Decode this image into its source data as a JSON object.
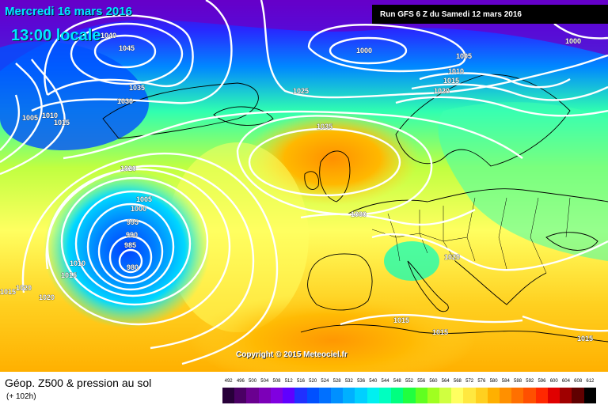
{
  "header": {
    "date": "Mercredi 16 mars 2016",
    "time": "13:00 locale",
    "run": "Run GFS 6 Z du Samedi 12 mars 2016"
  },
  "copyright": "Copyright © 2015 Meteociel.fr",
  "legend": {
    "title": "Géop. Z500 & pression au sol",
    "subtitle": "(+ 102h)"
  },
  "scale": {
    "values": [
      "492",
      "496",
      "500",
      "504",
      "508",
      "512",
      "516",
      "520",
      "524",
      "528",
      "532",
      "536",
      "540",
      "544",
      "548",
      "552",
      "556",
      "560",
      "564",
      "568",
      "572",
      "576",
      "580",
      "584",
      "588",
      "592",
      "596",
      "600",
      "604",
      "608",
      "612"
    ],
    "colors": [
      "#28003a",
      "#4a0064",
      "#6a0090",
      "#7c00b8",
      "#8000e0",
      "#6000ff",
      "#2030ff",
      "#0050ff",
      "#0070ff",
      "#0090ff",
      "#00b0ff",
      "#00d0ff",
      "#00f0f0",
      "#00ffc0",
      "#00ff80",
      "#20ff40",
      "#60ff20",
      "#a0ff20",
      "#d0ff40",
      "#ffff60",
      "#ffe840",
      "#ffd020",
      "#ffb000",
      "#ff9000",
      "#ff7000",
      "#ff5000",
      "#ff2800",
      "#e00000",
      "#a00000",
      "#600000",
      "#000000"
    ]
  },
  "isobars": [
    {
      "id": "l1040",
      "text": "1040"
    },
    {
      "id": "l1045",
      "text": "1045"
    },
    {
      "id": "l1035a",
      "text": "1035"
    },
    {
      "id": "l1030a",
      "text": "1030"
    },
    {
      "id": "l1005a",
      "text": "1005"
    },
    {
      "id": "l1010a",
      "text": "1010"
    },
    {
      "id": "l1015a",
      "text": "1015"
    },
    {
      "id": "l1000a",
      "text": "1000"
    },
    {
      "id": "l1005b",
      "text": "1005"
    },
    {
      "id": "l1010b",
      "text": "1010"
    },
    {
      "id": "l1015b",
      "text": "1015"
    },
    {
      "id": "l1020a",
      "text": "1020"
    },
    {
      "id": "l1000b",
      "text": "1000"
    },
    {
      "id": "l1025",
      "text": "1025"
    },
    {
      "id": "l1035b",
      "text": "1035"
    },
    {
      "id": "l1020b",
      "text": "1020"
    },
    {
      "id": "l1005c",
      "text": "1005"
    },
    {
      "id": "l1000c",
      "text": "1000"
    },
    {
      "id": "l995",
      "text": "995"
    },
    {
      "id": "l990",
      "text": "990"
    },
    {
      "id": "l985",
      "text": "985"
    },
    {
      "id": "l980",
      "text": "980"
    },
    {
      "id": "l1010c",
      "text": "1010"
    },
    {
      "id": "l1015c",
      "text": "1015"
    },
    {
      "id": "l1020c",
      "text": "1020"
    },
    {
      "id": "l1015d",
      "text": "1015"
    },
    {
      "id": "l1020d",
      "text": "1020"
    },
    {
      "id": "l1030b",
      "text": "1030"
    },
    {
      "id": "l1020e",
      "text": "1020"
    },
    {
      "id": "l1015e",
      "text": "1015"
    },
    {
      "id": "l1015f",
      "text": "1015"
    },
    {
      "id": "l1015g",
      "text": "1015"
    }
  ]
}
